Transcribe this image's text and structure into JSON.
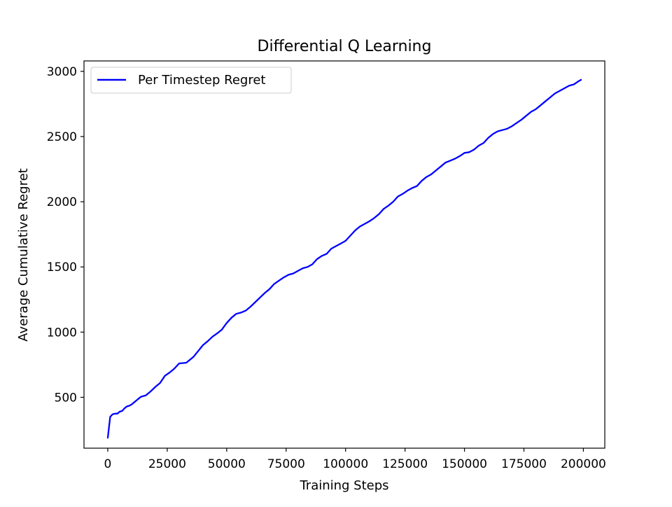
{
  "chart_data": {
    "type": "line",
    "title": "Differential Q Learning",
    "xlabel": "Training Steps",
    "ylabel": "Average Cumulative Regret",
    "xlim": [
      -10000,
      209000
    ],
    "ylim": [
      110,
      3080
    ],
    "xticks": [
      0,
      25000,
      50000,
      75000,
      100000,
      125000,
      150000,
      175000,
      200000
    ],
    "yticks": [
      500,
      1000,
      1500,
      2000,
      2500,
      3000
    ],
    "grid": false,
    "legend_position": "upper-left",
    "series": [
      {
        "name": "Per Timestep Regret",
        "color": "#0000ff",
        "x": [
          0,
          1000,
          2000,
          3000,
          4000,
          5000,
          6000,
          7000,
          8000,
          9000,
          10000,
          11000,
          12000,
          13000,
          14000,
          16000,
          18000,
          20000,
          22000,
          24000,
          26000,
          28000,
          30000,
          33000,
          36000,
          38000,
          40000,
          42000,
          44000,
          46000,
          48000,
          50000,
          52000,
          54000,
          56000,
          58000,
          60000,
          62000,
          64000,
          66000,
          68000,
          70000,
          72000,
          74000,
          76000,
          78000,
          80000,
          82000,
          84000,
          86000,
          88000,
          90000,
          92000,
          94000,
          96000,
          98000,
          100000,
          102000,
          104000,
          106000,
          108000,
          110000,
          112000,
          114000,
          116000,
          118000,
          120000,
          122000,
          124000,
          126000,
          128000,
          130000,
          132000,
          134000,
          136000,
          138000,
          140000,
          142000,
          144000,
          146000,
          148000,
          150000,
          152000,
          154000,
          156000,
          158000,
          160000,
          162000,
          164000,
          166000,
          168000,
          170000,
          172000,
          174000,
          176000,
          178000,
          180000,
          182000,
          184000,
          186000,
          188000,
          190000,
          192000,
          194000,
          196000,
          198000,
          199000
        ],
        "y": [
          190,
          350,
          370,
          375,
          375,
          390,
          395,
          415,
          430,
          435,
          445,
          460,
          475,
          490,
          505,
          515,
          545,
          580,
          610,
          665,
          690,
          720,
          760,
          765,
          810,
          855,
          900,
          930,
          965,
          990,
          1020,
          1070,
          1110,
          1140,
          1150,
          1165,
          1195,
          1230,
          1265,
          1300,
          1330,
          1370,
          1395,
          1420,
          1440,
          1450,
          1470,
          1490,
          1500,
          1520,
          1560,
          1585,
          1600,
          1640,
          1660,
          1680,
          1700,
          1740,
          1780,
          1810,
          1830,
          1850,
          1875,
          1905,
          1945,
          1970,
          2000,
          2040,
          2060,
          2085,
          2105,
          2120,
          2160,
          2190,
          2210,
          2240,
          2270,
          2300,
          2315,
          2330,
          2350,
          2375,
          2380,
          2400,
          2430,
          2450,
          2490,
          2520,
          2540,
          2550,
          2560,
          2580,
          2605,
          2630,
          2660,
          2690,
          2710,
          2740,
          2770,
          2800,
          2830,
          2850,
          2870,
          2890,
          2900,
          2925,
          2935
        ]
      }
    ]
  }
}
